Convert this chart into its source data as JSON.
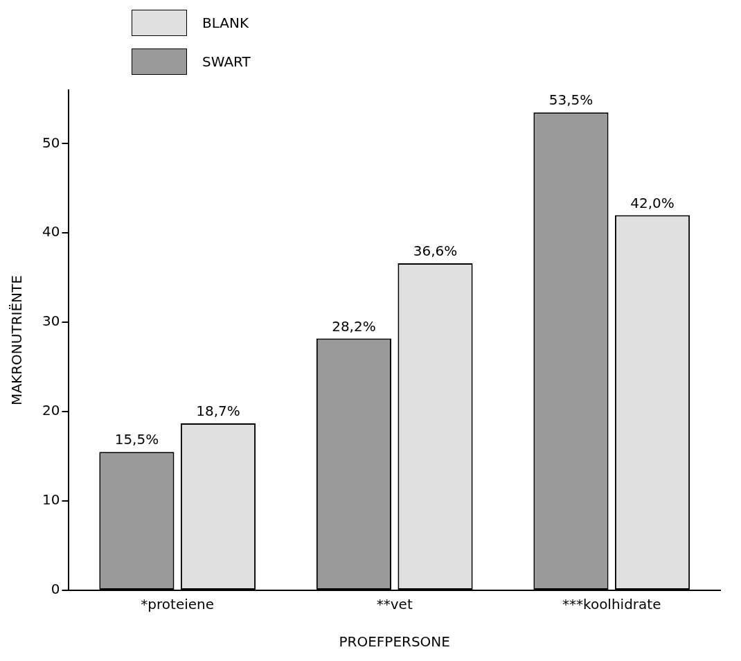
{
  "chart_data": {
    "type": "bar",
    "xlabel": "PROEFPERSONE",
    "ylabel": "MAKRONUTRIËNTE",
    "categories": [
      "*proteiene",
      "**vet",
      "***koolhidrate"
    ],
    "series": [
      {
        "name": "SWART",
        "color": "#9a9a9a",
        "values": [
          15.5,
          28.2,
          53.5
        ],
        "value_labels": [
          "15,5%",
          "28,2%",
          "53,5%"
        ]
      },
      {
        "name": "BLANK",
        "color": "#e0e0e0",
        "values": [
          18.7,
          36.6,
          42.0
        ],
        "value_labels": [
          "18,7%",
          "36,6%",
          "42,0%"
        ]
      }
    ],
    "ylim": [
      0,
      56
    ],
    "yticks": [
      0,
      10,
      20,
      30,
      40,
      50
    ],
    "grid": false,
    "legend": "top left"
  }
}
